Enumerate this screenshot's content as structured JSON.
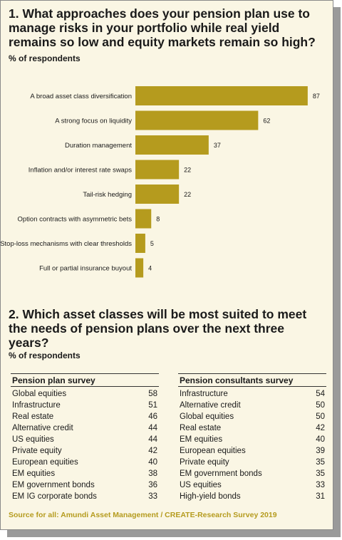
{
  "q1": {
    "title": "1. What approaches does your pension plan use to manage risks in your portfolio while real yield remains so low and equity markets remain so high?",
    "subtitle": "% of respondents"
  },
  "chart_data": {
    "type": "bar",
    "orientation": "horizontal",
    "categories": [
      "A broad asset class diversification",
      "A strong focus on liquidity",
      "Duration management",
      "Inflation and/or interest rate swaps",
      "Tail-risk hedging",
      "Option contracts with asymmetric bets",
      "Stop-loss mechanisms with clear thresholds",
      "Full or partial insurance buyout"
    ],
    "values": [
      87,
      62,
      37,
      22,
      22,
      8,
      5,
      4
    ],
    "xlim": [
      0,
      100
    ],
    "grid": false,
    "bar_color": "#b59b1e"
  },
  "q2": {
    "title": "2. Which asset classes will be most suited to meet the needs of pension plans over the next three years?",
    "subtitle": "% of respondents"
  },
  "tables": [
    {
      "header": "Pension plan survey",
      "rows": [
        {
          "label": "Global equities",
          "value": "58"
        },
        {
          "label": "Infrastructure",
          "value": "51"
        },
        {
          "label": "Real estate",
          "value": "46"
        },
        {
          "label": "Alternative credit",
          "value": "44"
        },
        {
          "label": "US equities",
          "value": "44"
        },
        {
          "label": "Private equity",
          "value": "42"
        },
        {
          "label": "European equities",
          "value": "40"
        },
        {
          "label": "EM equities",
          "value": "38"
        },
        {
          "label": "EM government bonds",
          "value": "36"
        },
        {
          "label": "EM IG corporate bonds",
          "value": "33"
        }
      ]
    },
    {
      "header": "Pension consultants survey",
      "rows": [
        {
          "label": "Infrastructure",
          "value": "54"
        },
        {
          "label": "Alternative credit",
          "value": "50"
        },
        {
          "label": "Global equities",
          "value": "50"
        },
        {
          "label": "Real estate",
          "value": "42"
        },
        {
          "label": "EM equities",
          "value": "40"
        },
        {
          "label": "European equities",
          "value": "39"
        },
        {
          "label": "Private equity",
          "value": "35"
        },
        {
          "label": "EM government bonds",
          "value": "35"
        },
        {
          "label": "US equities",
          "value": "33"
        },
        {
          "label": "High-yield bonds",
          "value": "31"
        }
      ]
    }
  ],
  "source": "Source for all: Amundi Asset Management / CREATE-Research Survey 2019"
}
